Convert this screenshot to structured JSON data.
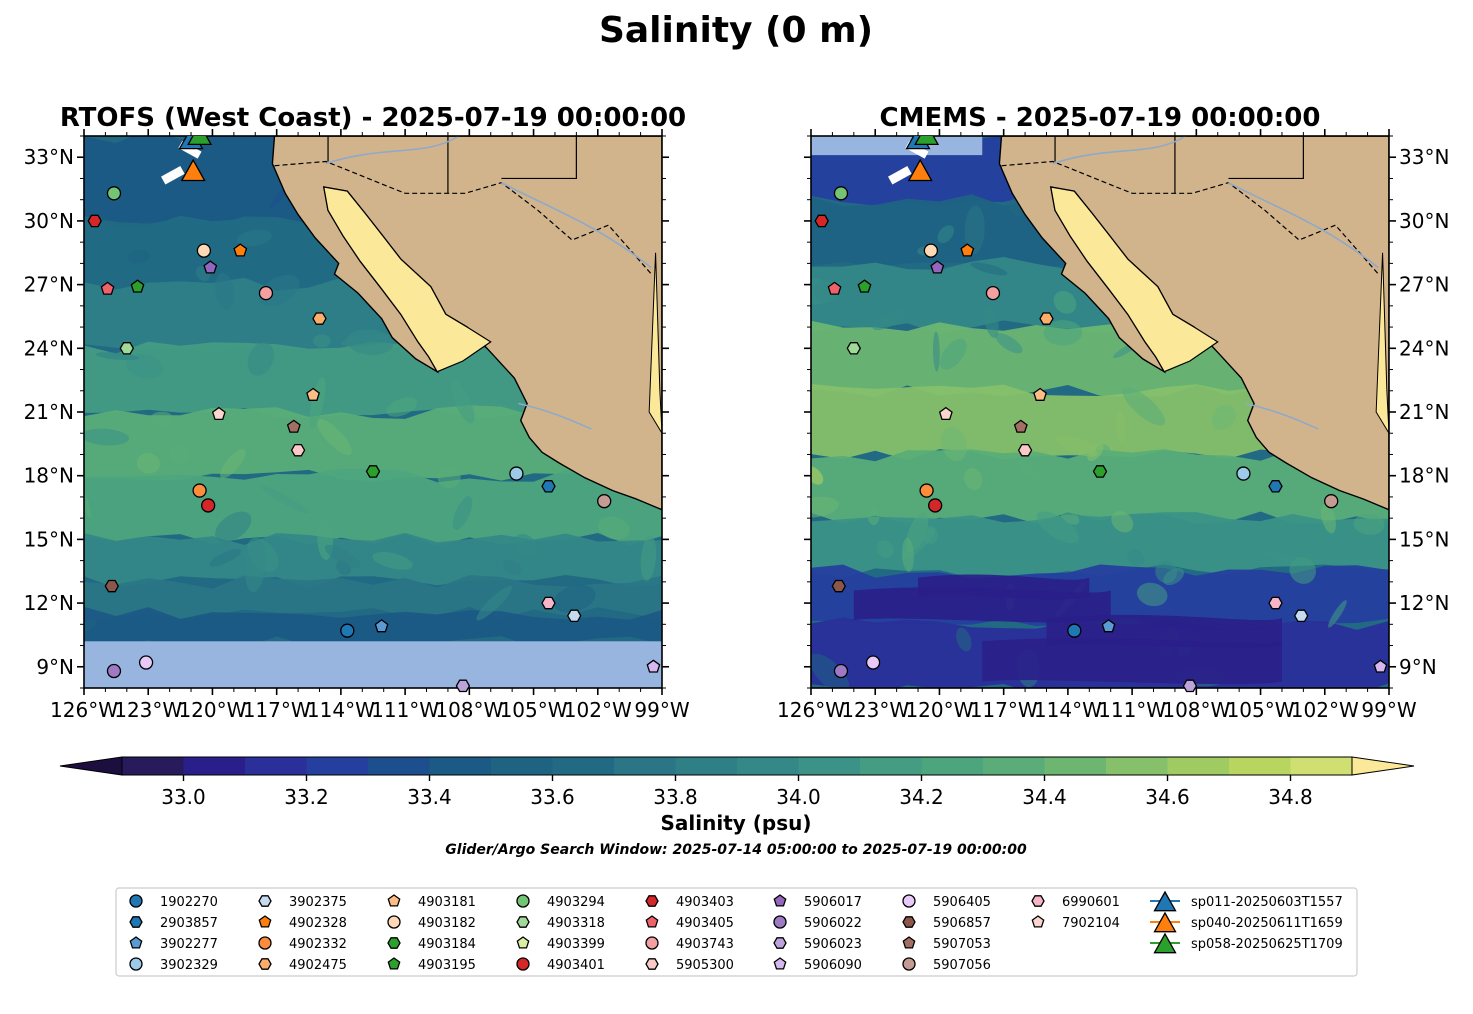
{
  "figure": {
    "title": "Salinity (0 m)",
    "search_window": "Glider/Argo Search Window: 2025-07-14 05:00:00 to 2025-07-19 00:00:00"
  },
  "panels": [
    {
      "title": "RTOFS (West Coast) - 2025-07-19 00:00:00",
      "model": "RTOFS",
      "masked_south_of_lat": 10.2
    },
    {
      "title": "CMEMS - 2025-07-19 00:00:00",
      "model": "CMEMS",
      "masked_south_of_lat": null
    }
  ],
  "colors": {
    "land": "#d2b48c",
    "gulf_of_california": "#fbe999",
    "nodata": "#98b5e0",
    "colormap": [
      "#271b5c",
      "#2a1f8a",
      "#2a2f99",
      "#253f9e",
      "#1d4f8e",
      "#1c5a86",
      "#1f6383",
      "#226a83",
      "#2a7686",
      "#2f7f87",
      "#348887",
      "#3b9287",
      "#449c83",
      "#4da57e",
      "#5aad78",
      "#6cb672",
      "#86c06a",
      "#9fcb62",
      "#b8d55f",
      "#d0df72"
    ]
  },
  "legend": {
    "floats": [
      {
        "id": "1902270",
        "marker": "circle",
        "color": "#1f77b4"
      },
      {
        "id": "2903857",
        "marker": "hexagon",
        "color": "#1f77b4"
      },
      {
        "id": "3902277",
        "marker": "pentagon",
        "color": "#5b9bd5"
      },
      {
        "id": "3902329",
        "marker": "circle",
        "color": "#9ecae9"
      },
      {
        "id": "3902375",
        "marker": "hexagon",
        "color": "#c6dbef"
      },
      {
        "id": "4902328",
        "marker": "pentagon",
        "color": "#ff7f0e"
      },
      {
        "id": "4902332",
        "marker": "circle",
        "color": "#fd8d3c"
      },
      {
        "id": "4902475",
        "marker": "hexagon",
        "color": "#fdae6b"
      },
      {
        "id": "4903181",
        "marker": "pentagon",
        "color": "#fdbe85"
      },
      {
        "id": "4903182",
        "marker": "circle",
        "color": "#fdd9b5"
      },
      {
        "id": "4903184",
        "marker": "hexagon",
        "color": "#2ca02c"
      },
      {
        "id": "4903195",
        "marker": "pentagon",
        "color": "#2ca02c"
      },
      {
        "id": "4903294",
        "marker": "circle",
        "color": "#74c476"
      },
      {
        "id": "4903318",
        "marker": "hexagon",
        "color": "#a1d99b"
      },
      {
        "id": "4903399",
        "marker": "pentagon",
        "color": "#d9f0a3"
      },
      {
        "id": "4903401",
        "marker": "circle",
        "color": "#d62728"
      },
      {
        "id": "4903403",
        "marker": "hexagon",
        "color": "#d62728"
      },
      {
        "id": "4903405",
        "marker": "pentagon",
        "color": "#f0626a"
      },
      {
        "id": "4903743",
        "marker": "circle",
        "color": "#f4a0a0"
      },
      {
        "id": "5905300",
        "marker": "hexagon",
        "color": "#fcc9c9"
      },
      {
        "id": "5906017",
        "marker": "pentagon",
        "color": "#9467bd"
      },
      {
        "id": "5906022",
        "marker": "circle",
        "color": "#9e79c4"
      },
      {
        "id": "5906023",
        "marker": "hexagon",
        "color": "#bca3db"
      },
      {
        "id": "5906090",
        "marker": "pentagon",
        "color": "#d5b8f0"
      },
      {
        "id": "5906405",
        "marker": "circle",
        "color": "#e9c9f7"
      },
      {
        "id": "5906857",
        "marker": "hexagon",
        "color": "#8c564b"
      },
      {
        "id": "5907053",
        "marker": "pentagon",
        "color": "#a36f62"
      },
      {
        "id": "5907056",
        "marker": "circle",
        "color": "#c49c94"
      },
      {
        "id": "6990601",
        "marker": "hexagon",
        "color": "#f7b6c8"
      },
      {
        "id": "7902104",
        "marker": "pentagon",
        "color": "#fcd5cf"
      }
    ],
    "gliders": [
      {
        "id": "sp011-20250603T1557",
        "color": "#1f77b4"
      },
      {
        "id": "sp040-20250611T1659",
        "color": "#ff7f0e"
      },
      {
        "id": "sp058-20250625T1709",
        "color": "#2ca02c"
      }
    ]
  },
  "chart_data": {
    "type": "heatmap",
    "variable": "Salinity",
    "depth": "0 m",
    "colorbar": {
      "label": "Salinity (psu)",
      "range": [
        32.9,
        34.9
      ],
      "step": 0.1,
      "extend": "both",
      "ticks": [
        "33.0",
        "33.2",
        "33.4",
        "33.6",
        "33.8",
        "34.0",
        "34.2",
        "34.4",
        "34.6",
        "34.8"
      ]
    },
    "xlim": [
      -126,
      -99
    ],
    "ylim": [
      8,
      34
    ],
    "x_ticks": [
      "126°W",
      "123°W",
      "120°W",
      "117°W",
      "114°W",
      "111°W",
      "108°W",
      "105°W",
      "102°W",
      "99°W"
    ],
    "y_ticks": [
      "9°N",
      "12°N",
      "15°N",
      "18°N",
      "21°N",
      "24°N",
      "27°N",
      "30°N",
      "33°N"
    ],
    "floats": [
      {
        "id": "4903294",
        "lon": -124.6,
        "lat": 31.3
      },
      {
        "id": "4903403",
        "lon": -125.5,
        "lat": 30.0
      },
      {
        "id": "4903182",
        "lon": -120.4,
        "lat": 28.6
      },
      {
        "id": "4902328",
        "lon": -118.7,
        "lat": 28.6
      },
      {
        "id": "5906017",
        "lon": -120.1,
        "lat": 27.8
      },
      {
        "id": "4903405",
        "lon": -124.9,
        "lat": 26.8
      },
      {
        "id": "4903195",
        "lon": -123.5,
        "lat": 26.9
      },
      {
        "id": "4903743",
        "lon": -117.5,
        "lat": 26.6
      },
      {
        "id": "4902475",
        "lon": -115.0,
        "lat": 25.4
      },
      {
        "id": "4903318",
        "lon": -124.0,
        "lat": 24.0
      },
      {
        "id": "4903181",
        "lon": -115.3,
        "lat": 21.8
      },
      {
        "id": "7902104",
        "lon": -119.7,
        "lat": 20.9
      },
      {
        "id": "5907053",
        "lon": -116.2,
        "lat": 20.3
      },
      {
        "id": "5905300",
        "lon": -116.0,
        "lat": 19.2
      },
      {
        "id": "4903184",
        "lon": -112.5,
        "lat": 18.2
      },
      {
        "id": "3902329",
        "lon": -105.8,
        "lat": 18.1
      },
      {
        "id": "2903857",
        "lon": -104.3,
        "lat": 17.5
      },
      {
        "id": "5907056",
        "lon": -101.7,
        "lat": 16.8
      },
      {
        "id": "4902332",
        "lon": -120.6,
        "lat": 17.3
      },
      {
        "id": "4903401",
        "lon": -120.2,
        "lat": 16.6
      },
      {
        "id": "5906857",
        "lon": -124.7,
        "lat": 12.8
      },
      {
        "id": "6990601",
        "lon": -104.3,
        "lat": 12.0
      },
      {
        "id": "3902375",
        "lon": -103.1,
        "lat": 11.4
      },
      {
        "id": "1902270",
        "lon": -113.7,
        "lat": 10.7
      },
      {
        "id": "3902277",
        "lon": -112.1,
        "lat": 10.9
      },
      {
        "id": "5906405",
        "lon": -123.1,
        "lat": 9.2
      },
      {
        "id": "5906022",
        "lon": -124.6,
        "lat": 8.8
      },
      {
        "id": "5906090",
        "lon": -99.4,
        "lat": 9.0
      },
      {
        "id": "5906023",
        "lon": -108.3,
        "lat": 8.1
      }
    ],
    "gliders": [
      {
        "id": "sp011-20250603T1557",
        "lon": -121.0,
        "lat": 33.8
      },
      {
        "id": "sp040-20250611T1659",
        "lon": -120.9,
        "lat": 32.3
      },
      {
        "id": "sp058-20250625T1709",
        "lon": -120.6,
        "lat": 34.0
      }
    ]
  }
}
